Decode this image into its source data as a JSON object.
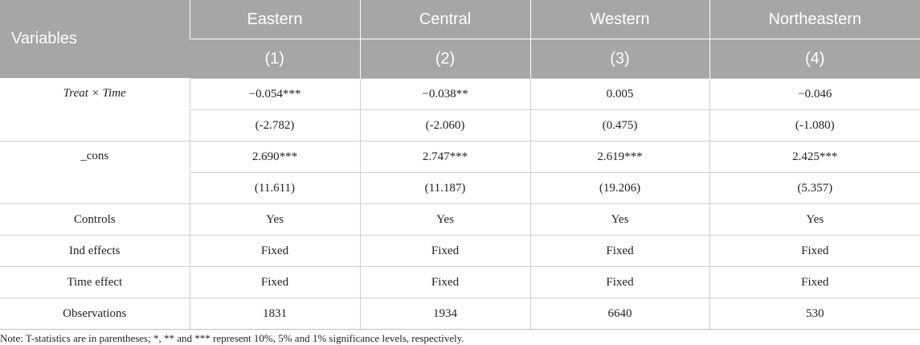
{
  "header": {
    "variables_label": "Variables",
    "columns": [
      "Eastern",
      "Central",
      "Western",
      "Northeastern"
    ],
    "column_numbers": [
      "(1)",
      "(2)",
      "(3)",
      "(4)"
    ]
  },
  "rows": {
    "treat_time": {
      "label": "Treat × Time",
      "coef": [
        "−0.054***",
        "−0.038**",
        "0.005",
        "−0.046"
      ],
      "tstat": [
        "(-2.782)",
        "(-2.060)",
        "(0.475)",
        "(-1.080)"
      ]
    },
    "cons": {
      "label": "_cons",
      "coef": [
        "2.690***",
        "2.747***",
        "2.619***",
        "2.425***"
      ],
      "tstat": [
        "(11.611)",
        "(11.187)",
        "(19.206)",
        "(5.357)"
      ]
    },
    "controls": {
      "label": "Controls",
      "values": [
        "Yes",
        "Yes",
        "Yes",
        "Yes"
      ]
    },
    "ind_effects": {
      "label": "Ind effects",
      "values": [
        "Fixed",
        "Fixed",
        "Fixed",
        "Fixed"
      ]
    },
    "time_effect": {
      "label": "Time effect",
      "values": [
        "Fixed",
        "Fixed",
        "Fixed",
        "Fixed"
      ]
    },
    "observations": {
      "label": "Observations",
      "values": [
        "1831",
        "1934",
        "6640",
        "530"
      ]
    }
  },
  "note": "Note: T-statistics are in parentheses; *, ** and *** represent 10%, 5% and 1% significance levels, respectively.",
  "colors": {
    "header_bg": "#a6a6a6",
    "header_text": "#ffffff",
    "grid": "#d0d0d0"
  }
}
